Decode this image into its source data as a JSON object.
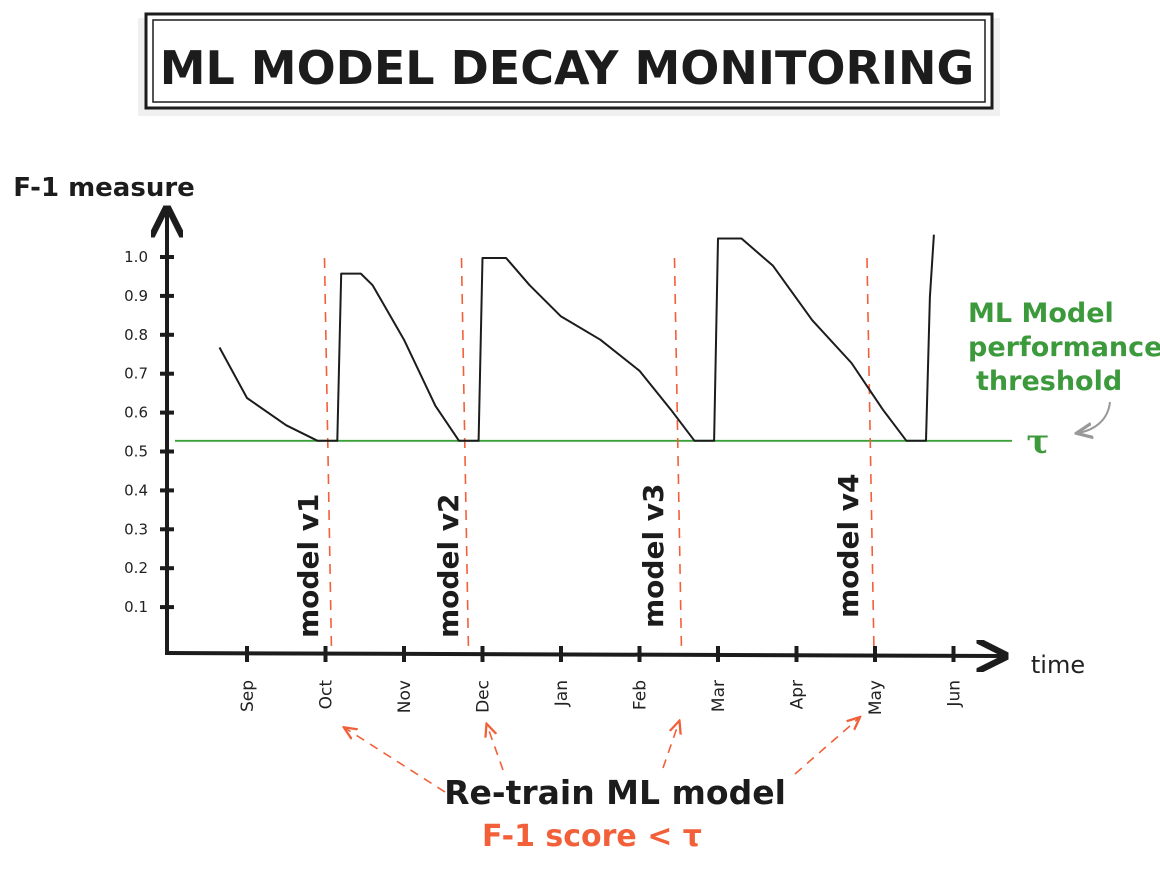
{
  "title": "ML MODEL DECAY MONITORING",
  "y_axis_label": "F-1 measure",
  "x_axis_label": "time",
  "y_ticks": [
    "1.0",
    "0.9",
    "0.8",
    "0.7",
    "0.6",
    "0.5",
    "0.4",
    "0.3",
    "0.2",
    "0.1"
  ],
  "months": [
    "Sep",
    "Oct",
    "Nov",
    "Dec",
    "Jan",
    "Feb",
    "Mar",
    "Apr",
    "May",
    "Jun"
  ],
  "models": [
    "model v1",
    "model v2",
    "model v3",
    "model v4"
  ],
  "threshold_note": [
    "ML Model",
    "performance",
    "threshold"
  ],
  "threshold_symbol": "τ",
  "retrain_label": "Re-train  ML model",
  "condition_label": "F-1 score < τ",
  "colors": {
    "ink": "#1c1c1c",
    "threshold": "#3aa03a",
    "retrain": "#f2603a",
    "threshold_text": "#3c9a3c",
    "arrow_gray": "#999999"
  },
  "chart_data": {
    "type": "line",
    "xlabel": "time",
    "ylabel": "F-1 measure",
    "categories": [
      "Sep",
      "Oct",
      "Nov",
      "Dec",
      "Jan",
      "Feb",
      "Mar",
      "Apr",
      "May",
      "Jun"
    ],
    "ylim": [
      0,
      1.0
    ],
    "threshold": 0.53,
    "retrain_points": [
      "Oct",
      "Dec",
      "Feb",
      "May"
    ],
    "series": [
      {
        "values": [
          [
            -0.35,
            0.77
          ],
          [
            0.0,
            0.64
          ],
          [
            0.5,
            0.57
          ],
          [
            0.9,
            0.53
          ],
          [
            1.15,
            0.53
          ],
          [
            1.2,
            0.96
          ],
          [
            1.45,
            0.96
          ],
          [
            1.6,
            0.93
          ],
          [
            2.0,
            0.79
          ],
          [
            2.4,
            0.62
          ],
          [
            2.7,
            0.53
          ],
          [
            2.95,
            0.53
          ],
          [
            3.0,
            1.0
          ],
          [
            3.3,
            1.0
          ],
          [
            3.6,
            0.93
          ],
          [
            4.0,
            0.85
          ],
          [
            4.5,
            0.79
          ],
          [
            5.0,
            0.71
          ],
          [
            5.4,
            0.61
          ],
          [
            5.7,
            0.53
          ],
          [
            5.95,
            0.53
          ],
          [
            6.0,
            1.05
          ],
          [
            6.3,
            1.05
          ],
          [
            6.7,
            0.98
          ],
          [
            7.2,
            0.84
          ],
          [
            7.7,
            0.73
          ],
          [
            8.1,
            0.61
          ],
          [
            8.4,
            0.53
          ],
          [
            8.65,
            0.53
          ],
          [
            8.7,
            0.9
          ],
          [
            8.75,
            1.06
          ]
        ]
      }
    ]
  }
}
